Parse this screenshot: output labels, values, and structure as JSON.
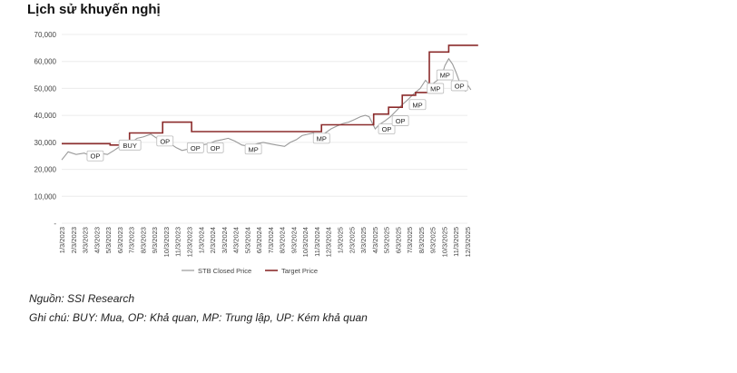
{
  "title": "Lịch sử khuyến nghị",
  "chart_data": {
    "type": "line",
    "title": "Lịch sử khuyến nghị",
    "xlabel": "",
    "ylabel": "",
    "ylim": [
      0,
      70000
    ],
    "yticks": [
      "-",
      "10,000",
      "20,000",
      "30,000",
      "40,000",
      "50,000",
      "60,000",
      "70,000"
    ],
    "xticks": [
      "1/3/2023",
      "2/3/2023",
      "3/3/2023",
      "4/3/2023",
      "5/3/2023",
      "6/3/2023",
      "7/3/2023",
      "8/3/2023",
      "9/3/2023",
      "10/3/2023",
      "11/3/2023",
      "12/3/2023",
      "1/3/2024",
      "2/3/2024",
      "3/3/2024",
      "4/3/2024",
      "5/3/2024",
      "6/3/2024",
      "7/3/2024",
      "8/3/2024",
      "9/3/2024",
      "10/3/2024",
      "11/3/2024",
      "12/3/2024",
      "1/3/2025",
      "2/3/2025",
      "3/3/2025",
      "4/3/2025",
      "5/3/2025",
      "6/3/2025",
      "7/3/2025",
      "8/3/2025",
      "9/3/2025",
      "10/3/2025",
      "11/3/2025",
      "12/3/2025"
    ],
    "grid": "horizontal",
    "legend_position": "bottom",
    "series": [
      {
        "name": "STB Closed Price",
        "color": "#9a9a9a",
        "points": [
          [
            "2023-01-03",
            23500
          ],
          [
            "2023-01-20",
            26500
          ],
          [
            "2023-02-10",
            25500
          ],
          [
            "2023-03-03",
            26000
          ],
          [
            "2023-03-20",
            25000
          ],
          [
            "2023-04-10",
            26000
          ],
          [
            "2023-05-03",
            25500
          ],
          [
            "2023-05-20",
            27000
          ],
          [
            "2023-06-05",
            28500
          ],
          [
            "2023-06-20",
            29000
          ],
          [
            "2023-07-05",
            30000
          ],
          [
            "2023-07-20",
            31500
          ],
          [
            "2023-08-05",
            32000
          ],
          [
            "2023-08-25",
            33000
          ],
          [
            "2023-09-10",
            31500
          ],
          [
            "2023-09-28",
            32000
          ],
          [
            "2023-10-15",
            29500
          ],
          [
            "2023-10-31",
            28000
          ],
          [
            "2023-11-15",
            27000
          ],
          [
            "2023-12-01",
            27500
          ],
          [
            "2023-12-20",
            28500
          ],
          [
            "2024-01-05",
            29000
          ],
          [
            "2024-01-25",
            29500
          ],
          [
            "2024-02-10",
            30500
          ],
          [
            "2024-02-28",
            31000
          ],
          [
            "2024-03-15",
            31500
          ],
          [
            "2024-04-01",
            30500
          ],
          [
            "2024-04-20",
            29000
          ],
          [
            "2024-05-10",
            28500
          ],
          [
            "2024-05-30",
            29500
          ],
          [
            "2024-06-15",
            30000
          ],
          [
            "2024-07-01",
            29500
          ],
          [
            "2024-07-20",
            29000
          ],
          [
            "2024-08-10",
            28500
          ],
          [
            "2024-08-25",
            30000
          ],
          [
            "2024-09-10",
            31000
          ],
          [
            "2024-09-25",
            32500
          ],
          [
            "2024-10-10",
            33000
          ],
          [
            "2024-10-25",
            33500
          ],
          [
            "2024-11-10",
            32000
          ],
          [
            "2024-11-25",
            33500
          ],
          [
            "2024-12-10",
            35000
          ],
          [
            "2024-12-25",
            36000
          ],
          [
            "2025-01-10",
            37000
          ],
          [
            "2025-01-25",
            37500
          ],
          [
            "2025-02-10",
            38500
          ],
          [
            "2025-02-25",
            39500
          ],
          [
            "2025-03-10",
            40000
          ],
          [
            "2025-03-20",
            39500
          ],
          [
            "2025-04-05",
            35000
          ],
          [
            "2025-04-15",
            36500
          ],
          [
            "2025-05-01",
            38000
          ],
          [
            "2025-05-15",
            39500
          ],
          [
            "2025-06-01",
            42000
          ],
          [
            "2025-06-15",
            44000
          ],
          [
            "2025-07-01",
            46000
          ],
          [
            "2025-07-15",
            48000
          ],
          [
            "2025-08-01",
            50000
          ],
          [
            "2025-08-15",
            53000
          ],
          [
            "2025-08-28",
            51000
          ],
          [
            "2025-09-10",
            52500
          ],
          [
            "2025-09-25",
            54000
          ],
          [
            "2025-10-05",
            58500
          ],
          [
            "2025-10-15",
            61000
          ],
          [
            "2025-10-25",
            59000
          ],
          [
            "2025-11-03",
            56000
          ],
          [
            "2025-11-12",
            52500
          ],
          [
            "2025-11-20",
            50000
          ],
          [
            "2025-11-28",
            49000
          ],
          [
            "2025-12-05",
            51000
          ],
          [
            "2025-12-12",
            49500
          ]
        ]
      },
      {
        "name": "Target Price",
        "color": "#8b2b2b",
        "steps": [
          [
            "2023-01-03",
            29500
          ],
          [
            "2023-05-10",
            29000
          ],
          [
            "2023-06-30",
            33500
          ],
          [
            "2023-09-25",
            37500
          ],
          [
            "2023-12-10",
            34000
          ],
          [
            "2024-09-25",
            34000
          ],
          [
            "2024-11-15",
            36500
          ],
          [
            "2025-03-15",
            36500
          ],
          [
            "2025-04-01",
            40500
          ],
          [
            "2025-05-10",
            43000
          ],
          [
            "2025-06-15",
            47500
          ],
          [
            "2025-07-20",
            48500
          ],
          [
            "2025-08-25",
            63500
          ],
          [
            "2025-10-15",
            66000
          ],
          [
            "2025-12-31",
            66000
          ]
        ]
      }
    ],
    "annotations": [
      {
        "label": "OP",
        "date": "2023-04-01",
        "price": 25000
      },
      {
        "label": "BUY",
        "date": "2023-07-01",
        "price": 29000
      },
      {
        "label": "OP",
        "date": "2023-10-01",
        "price": 30500
      },
      {
        "label": "OP",
        "date": "2023-12-20",
        "price": 28000
      },
      {
        "label": "OP",
        "date": "2024-02-10",
        "price": 28000
      },
      {
        "label": "MP",
        "date": "2024-05-20",
        "price": 27500
      },
      {
        "label": "MP",
        "date": "2024-11-15",
        "price": 31500
      },
      {
        "label": "OP",
        "date": "2025-05-05",
        "price": 35000
      },
      {
        "label": "OP",
        "date": "2025-06-10",
        "price": 38000
      },
      {
        "label": "MP",
        "date": "2025-07-25",
        "price": 44000
      },
      {
        "label": "MP",
        "date": "2025-09-10",
        "price": 50000
      },
      {
        "label": "MP",
        "date": "2025-10-05",
        "price": 55000
      },
      {
        "label": "OP",
        "date": "2025-11-12",
        "price": 51000
      }
    ]
  },
  "source_note": "Nguồn: SSI Research",
  "legend_note": "Ghi chú: BUY: Mua, OP: Khả quan, MP: Trung lập, UP: Kém khả quan"
}
